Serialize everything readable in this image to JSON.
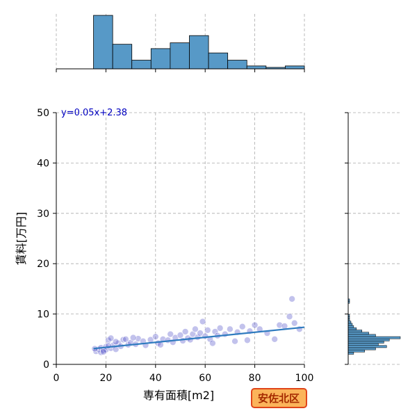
{
  "chart_data": {
    "type": "jointplot",
    "x_label": "専有面積[m2]",
    "y_label": "賃料[万円]",
    "annotation": "y=0.05x+2.38",
    "badge": "安佐北区",
    "xlim": [
      0,
      100
    ],
    "xticks": [
      0,
      20,
      40,
      60,
      80,
      100
    ],
    "ylim": [
      0,
      50
    ],
    "yticks": [
      0,
      10,
      20,
      30,
      40,
      50
    ],
    "grid": true,
    "color": "#4f4fc8",
    "hist_color": "#5799c7",
    "line_color": "#2f7bbf",
    "scatter": {
      "x": [
        16,
        17,
        18,
        18,
        19,
        20,
        20,
        21,
        22,
        22,
        23,
        24,
        25,
        26,
        27,
        28,
        29,
        30,
        32,
        33,
        35,
        36,
        38,
        40,
        41,
        42,
        43,
        45,
        46,
        47,
        48,
        50,
        51,
        52,
        53,
        54,
        55,
        56,
        57,
        58,
        59,
        60,
        61,
        62,
        63,
        64,
        65,
        66,
        68,
        70,
        72,
        73,
        75,
        77,
        78,
        80,
        82,
        85,
        88,
        90,
        92,
        94,
        95,
        96,
        98,
        15.5,
        19,
        21,
        24,
        31
      ],
      "values": [
        2.6,
        3.0,
        2.4,
        3.3,
        2.8,
        3.5,
        2.9,
        4.8,
        3.2,
        5.2,
        3.8,
        3.0,
        4.2,
        3.6,
        4.9,
        5.0,
        3.9,
        4.3,
        4.0,
        5.1,
        4.6,
        3.8,
        4.9,
        5.5,
        4.2,
        3.9,
        5.0,
        4.8,
        6.0,
        4.4,
        5.3,
        5.8,
        4.7,
        6.5,
        5.2,
        4.9,
        6.0,
        7.0,
        5.4,
        6.2,
        8.5,
        5.6,
        6.8,
        5.0,
        4.2,
        6.5,
        5.7,
        7.2,
        6.0,
        7.0,
        4.6,
        6.4,
        7.5,
        4.8,
        6.6,
        7.8,
        7.0,
        6.2,
        5.0,
        7.8,
        7.6,
        9.5,
        13.0,
        8.2,
        7.0,
        3.1,
        2.5,
        3.7,
        4.5,
        5.3
      ]
    },
    "regression": {
      "x": [
        15,
        100
      ],
      "values": [
        3.13,
        7.38
      ]
    },
    "top_hist": {
      "bins": [
        15,
        22.73,
        30.45,
        38.18,
        45.91,
        53.64,
        61.36,
        69.09,
        76.82,
        84.55,
        92.27,
        100
      ],
      "counts": [
        37,
        17,
        6,
        14,
        18,
        23,
        11,
        6,
        2,
        1,
        2
      ],
      "ylim": [
        0,
        38
      ]
    },
    "right_hist": {
      "bins": [
        2,
        2.44,
        2.88,
        3.32,
        3.76,
        4.2,
        4.64,
        5.08,
        5.52,
        5.96,
        6.4,
        6.84,
        7.28,
        7.72,
        8.16,
        8.6,
        9.04,
        9.48,
        9.92,
        10.36,
        10.8,
        11.24,
        11.68,
        12.12,
        12.56,
        13
      ],
      "counts": [
        4,
        12,
        20,
        28,
        22,
        26,
        30,
        38,
        20,
        15,
        10,
        6,
        4,
        3,
        2,
        1,
        1,
        1,
        0,
        0,
        0,
        0,
        0,
        1,
        1
      ],
      "xlim": [
        0,
        38
      ]
    }
  }
}
